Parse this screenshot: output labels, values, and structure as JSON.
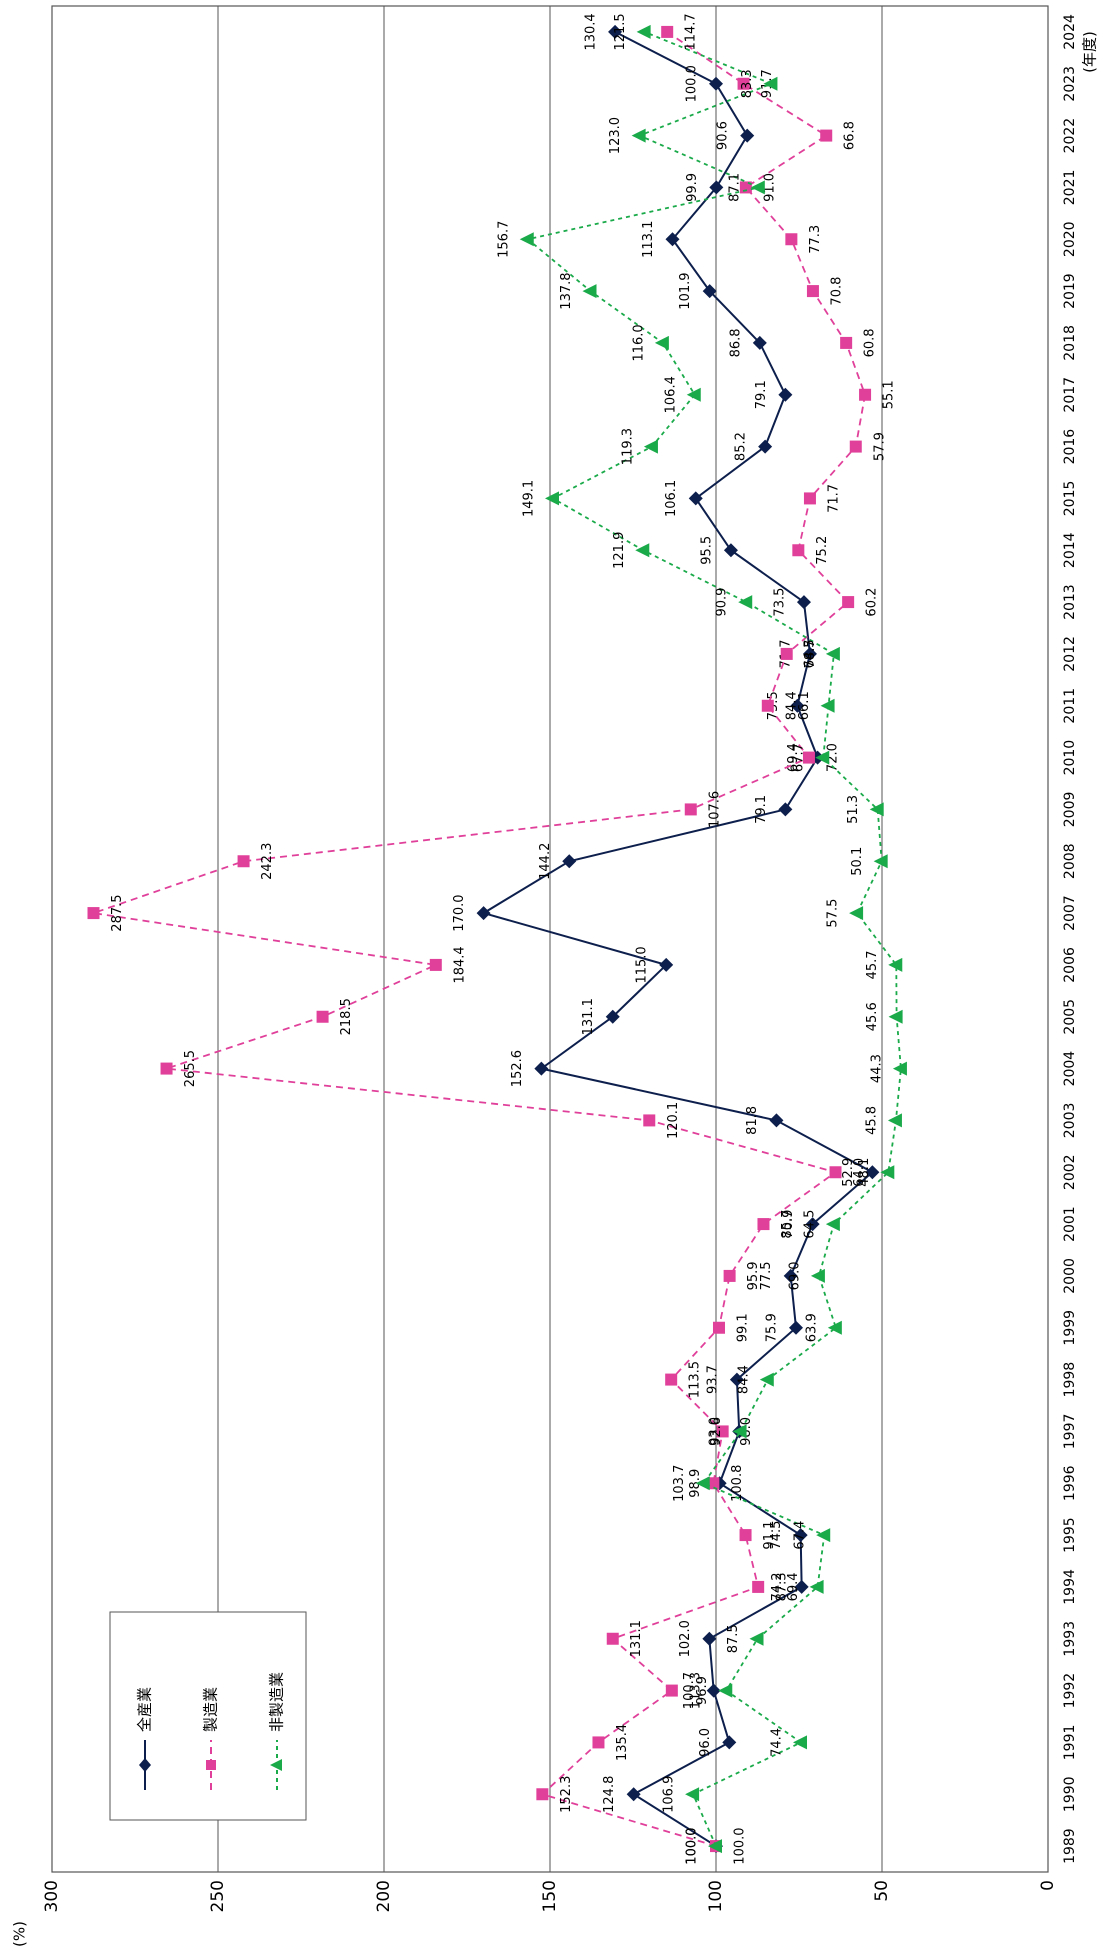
{
  "chart_data": {
    "type": "line",
    "title": "",
    "xlabel": "(年度)",
    "ylabel": "(%)",
    "ylim": [
      0,
      300
    ],
    "yticks": [
      0,
      50,
      100,
      150,
      200,
      250,
      300
    ],
    "grid": true,
    "legend_position": "bottom-left",
    "orientation": "rotated-90-clockwise",
    "x": [
      "1989",
      "1990",
      "1991",
      "1992",
      "1993",
      "1994",
      "1995",
      "1996",
      "1997",
      "1998",
      "1999",
      "2000",
      "2001",
      "2002",
      "2003",
      "2004",
      "2005",
      "2006",
      "2007",
      "2008",
      "2009",
      "2010",
      "2011",
      "2012",
      "2013",
      "2014",
      "2015",
      "2016",
      "2017",
      "2018",
      "2019",
      "2020",
      "2021",
      "2022",
      "2023",
      "2024"
    ],
    "series": [
      {
        "name": "全産業",
        "color": "#0d1f4c",
        "marker": "diamond",
        "dash": "solid",
        "values": [
          100.0,
          124.8,
          96.0,
          100.7,
          102.0,
          74.2,
          74.5,
          98.9,
          93.0,
          93.7,
          75.9,
          77.5,
          70.9,
          52.9,
          81.8,
          152.6,
          131.1,
          115.0,
          170.0,
          144.2,
          79.1,
          69.4,
          75.5,
          71.7,
          73.5,
          95.5,
          106.1,
          85.2,
          79.1,
          86.8,
          101.9,
          113.1,
          99.9,
          90.6,
          100.0,
          130.4
        ],
        "labels": [
          "100.0",
          "124.8",
          "96.0",
          "100.7",
          "102.0",
          "74.2",
          "74.5",
          "98.9",
          "93.0",
          "93.7",
          "75.9",
          "77.5",
          "70.9",
          "52.9",
          "81.8",
          "152.6",
          "131.1",
          "115.0",
          "170.0",
          "144.2",
          "79.1",
          "69.4",
          "75.5",
          "71.7",
          "73.5",
          "95.5",
          "106.1",
          "85.2",
          "79.1",
          "86.8",
          "101.9",
          "113.1",
          "99.9",
          "90.6",
          "100.0",
          "130.4"
        ]
      },
      {
        "name": "製造業",
        "color": "#e0409a",
        "marker": "square",
        "dash": "dashed",
        "values": [
          100.0,
          152.3,
          135.4,
          113.3,
          131.1,
          87.3,
          91.1,
          100.8,
          98.0,
          113.5,
          99.1,
          95.9,
          85.7,
          64.0,
          120.1,
          265.5,
          218.5,
          184.4,
          287.5,
          242.3,
          107.6,
          72.0,
          84.4,
          78.7,
          60.2,
          75.2,
          71.7,
          57.9,
          55.1,
          60.8,
          70.8,
          77.3,
          91.0,
          66.8,
          91.7,
          114.7
        ],
        "labels": [
          "100.0",
          "152.3",
          "135.4",
          "113.3",
          "131.1",
          "87.3",
          "91.1",
          "100.8",
          "98.0",
          "113.5",
          "99.1",
          "95.9",
          "85.7",
          "64.0",
          "120.1",
          "265.5",
          "218.5",
          "184.4",
          "287.5",
          "242.3",
          "107.6",
          "72.0",
          "84.4",
          "78.7",
          "60.2",
          "75.2",
          "71.7",
          "57.9",
          "55.1",
          "60.8",
          "70.8",
          "77.3",
          "91.0",
          "66.8",
          "91.7",
          "114.7"
        ]
      },
      {
        "name": "非製造業",
        "color": "#1aaa4a",
        "marker": "triangle",
        "dash": "dotted",
        "values": [
          100.0,
          106.9,
          74.4,
          96.9,
          87.5,
          69.4,
          67.4,
          103.7,
          92.6,
          84.4,
          63.9,
          69.0,
          64.5,
          48.1,
          45.8,
          44.3,
          45.6,
          45.7,
          57.5,
          50.1,
          51.3,
          67.7,
          66.1,
          64.5,
          90.9,
          121.9,
          149.1,
          119.3,
          106.4,
          116.0,
          137.8,
          156.7,
          87.1,
          123.0,
          83.3,
          121.5
        ],
        "labels": [
          "100.0",
          "106.9",
          "74.4",
          "96.9",
          "87.5",
          "69.4",
          "67.4",
          "103.7",
          "92.6",
          "84.4",
          "63.9",
          "69.0",
          "64.5",
          "48.1",
          "45.8",
          "44.3",
          "45.6",
          "45.7",
          "57.5",
          "50.1",
          "51.3",
          "67.7",
          "66.1",
          "64.5",
          "90.9",
          "121.9",
          "149.1",
          "119.3",
          "106.4",
          "116.0",
          "137.8",
          "156.7",
          "87.1",
          "123.0",
          "83.3",
          "121.5"
        ]
      }
    ]
  }
}
